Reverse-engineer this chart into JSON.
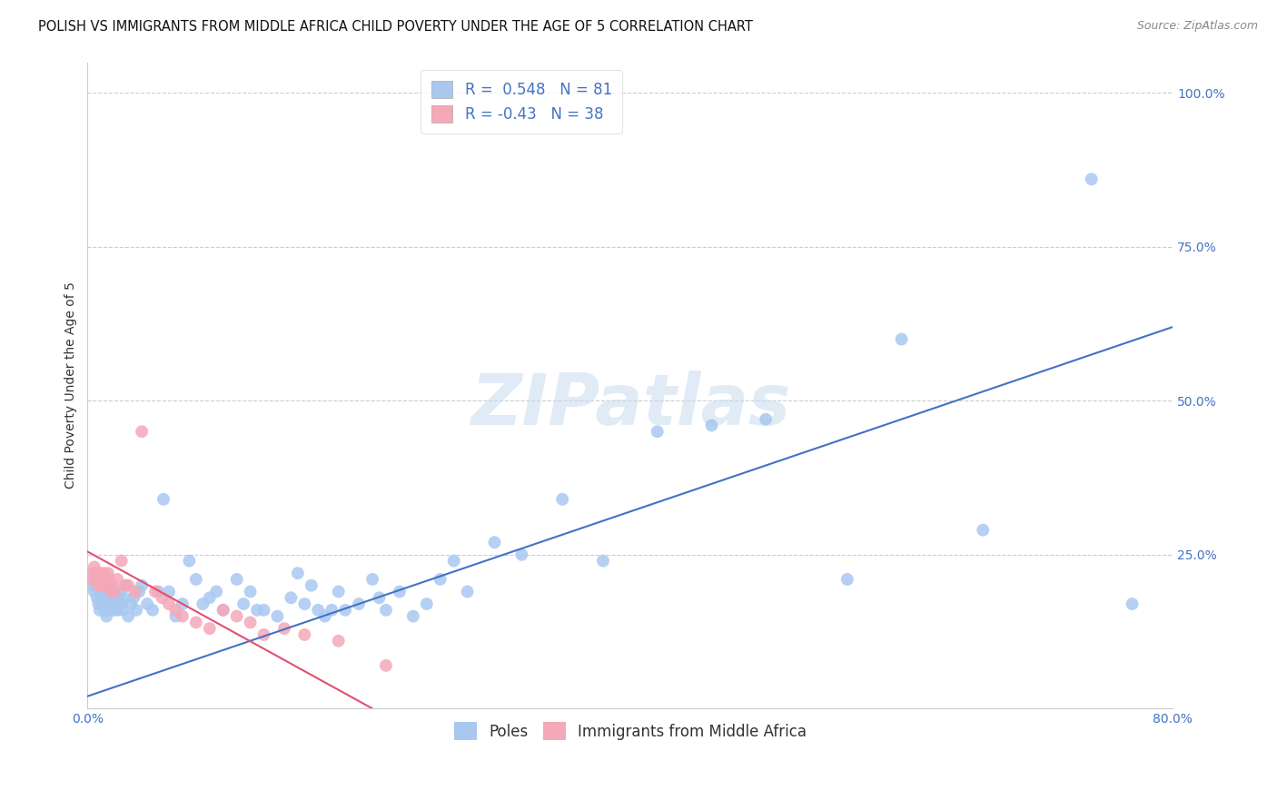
{
  "title": "POLISH VS IMMIGRANTS FROM MIDDLE AFRICA CHILD POVERTY UNDER THE AGE OF 5 CORRELATION CHART",
  "source": "Source: ZipAtlas.com",
  "ylabel": "Child Poverty Under the Age of 5",
  "xlim": [
    0.0,
    0.8
  ],
  "ylim": [
    0.0,
    1.05
  ],
  "yticks": [
    0.0,
    0.25,
    0.5,
    0.75,
    1.0
  ],
  "ytick_labels": [
    "",
    "25.0%",
    "50.0%",
    "75.0%",
    "100.0%"
  ],
  "blue_R": 0.548,
  "blue_N": 81,
  "pink_R": -0.43,
  "pink_N": 38,
  "blue_color": "#a8c8f0",
  "pink_color": "#f4a8b8",
  "blue_line_color": "#4472c4",
  "pink_line_color": "#e05070",
  "watermark": "ZIPatlas",
  "background_color": "#ffffff",
  "grid_color": "#cccccc",
  "poles_x": [
    0.003,
    0.005,
    0.006,
    0.007,
    0.008,
    0.009,
    0.01,
    0.011,
    0.012,
    0.013,
    0.014,
    0.015,
    0.016,
    0.017,
    0.018,
    0.019,
    0.02,
    0.021,
    0.022,
    0.023,
    0.024,
    0.025,
    0.026,
    0.027,
    0.028,
    0.03,
    0.032,
    0.034,
    0.036,
    0.038,
    0.04,
    0.044,
    0.048,
    0.052,
    0.056,
    0.06,
    0.065,
    0.07,
    0.075,
    0.08,
    0.085,
    0.09,
    0.095,
    0.1,
    0.11,
    0.115,
    0.12,
    0.125,
    0.13,
    0.14,
    0.15,
    0.155,
    0.16,
    0.165,
    0.17,
    0.175,
    0.18,
    0.185,
    0.19,
    0.2,
    0.21,
    0.215,
    0.22,
    0.23,
    0.24,
    0.25,
    0.26,
    0.27,
    0.28,
    0.3,
    0.32,
    0.35,
    0.38,
    0.42,
    0.46,
    0.5,
    0.56,
    0.6,
    0.66,
    0.74,
    0.77
  ],
  "poles_y": [
    0.2,
    0.19,
    0.21,
    0.18,
    0.17,
    0.16,
    0.19,
    0.18,
    0.17,
    0.16,
    0.15,
    0.18,
    0.2,
    0.17,
    0.19,
    0.16,
    0.18,
    0.17,
    0.16,
    0.18,
    0.19,
    0.17,
    0.16,
    0.18,
    0.2,
    0.15,
    0.17,
    0.18,
    0.16,
    0.19,
    0.2,
    0.17,
    0.16,
    0.19,
    0.34,
    0.19,
    0.15,
    0.17,
    0.24,
    0.21,
    0.17,
    0.18,
    0.19,
    0.16,
    0.21,
    0.17,
    0.19,
    0.16,
    0.16,
    0.15,
    0.18,
    0.22,
    0.17,
    0.2,
    0.16,
    0.15,
    0.16,
    0.19,
    0.16,
    0.17,
    0.21,
    0.18,
    0.16,
    0.19,
    0.15,
    0.17,
    0.21,
    0.24,
    0.19,
    0.27,
    0.25,
    0.34,
    0.24,
    0.45,
    0.46,
    0.47,
    0.21,
    0.6,
    0.29,
    0.86,
    0.17
  ],
  "imm_x": [
    0.003,
    0.004,
    0.005,
    0.006,
    0.007,
    0.008,
    0.009,
    0.01,
    0.011,
    0.012,
    0.013,
    0.014,
    0.015,
    0.016,
    0.017,
    0.018,
    0.02,
    0.022,
    0.025,
    0.028,
    0.03,
    0.035,
    0.04,
    0.05,
    0.055,
    0.06,
    0.065,
    0.07,
    0.08,
    0.09,
    0.1,
    0.11,
    0.12,
    0.13,
    0.145,
    0.16,
    0.185,
    0.22
  ],
  "imm_y": [
    0.21,
    0.22,
    0.23,
    0.22,
    0.21,
    0.2,
    0.22,
    0.21,
    0.2,
    0.22,
    0.21,
    0.2,
    0.22,
    0.21,
    0.19,
    0.2,
    0.19,
    0.21,
    0.24,
    0.2,
    0.2,
    0.19,
    0.45,
    0.19,
    0.18,
    0.17,
    0.16,
    0.15,
    0.14,
    0.13,
    0.16,
    0.15,
    0.14,
    0.12,
    0.13,
    0.12,
    0.11,
    0.07
  ],
  "blue_line_x": [
    0.0,
    0.8
  ],
  "blue_line_y": [
    0.02,
    0.62
  ],
  "pink_line_x": [
    0.0,
    0.21
  ],
  "pink_line_y": [
    0.255,
    0.0
  ],
  "title_fontsize": 10.5,
  "axis_label_fontsize": 10,
  "tick_fontsize": 10,
  "legend_fontsize": 12
}
